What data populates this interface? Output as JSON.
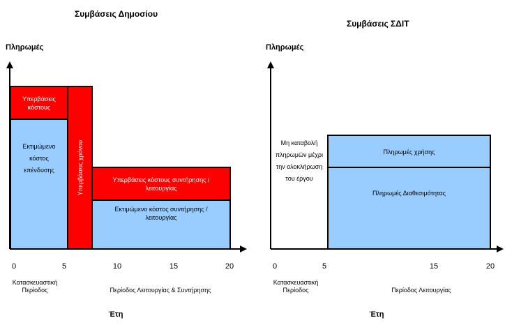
{
  "left": {
    "title": "Συμβάσεις Δημοσίου",
    "ylabel": "Πληρωμές",
    "ticks": [
      "0",
      "5",
      "10",
      "15",
      "20"
    ],
    "construction_period": "Κατασκευαστική Περίοδος",
    "operation_period": "Περίοδος Λειτουργίας & Συντήρησης",
    "xlabel": "Έτη",
    "blocks": {
      "estimated_investment": "Εκτιμώμενο κόστος επένδυσης",
      "cost_overrun": "Υπερβάσεις κόστους",
      "time_overrun": "Υπερβάσεις χρόνου",
      "om_cost_overrun": "Υπερβάσεις κόστους συντήρησης / λειτουργίας",
      "estimated_om": "Εκτιμώμενο κόστος συντήρησης / λειτουργίας"
    }
  },
  "right": {
    "title": "Συμβάσεις ΣΔΙΤ",
    "ylabel": "Πληρωμές",
    "ticks": [
      "0",
      "5",
      "15",
      "20"
    ],
    "construction_period": "Κατασκευαστική Περίοδος",
    "operation_period": "Περίοδος Λειτουργίας",
    "xlabel": "Έτη",
    "no_payment_note": "Μη καταβολή πληρωμών μέχρι την ολοκλήρωση του έργου",
    "blocks": {
      "usage_payments": "Πληρωμές χρήσης",
      "availability_payments": "Πληρωμές Διαθεσιμότητας"
    }
  },
  "colors": {
    "blue": "#99ccff",
    "red": "#ff0000",
    "axis": "#000000"
  }
}
